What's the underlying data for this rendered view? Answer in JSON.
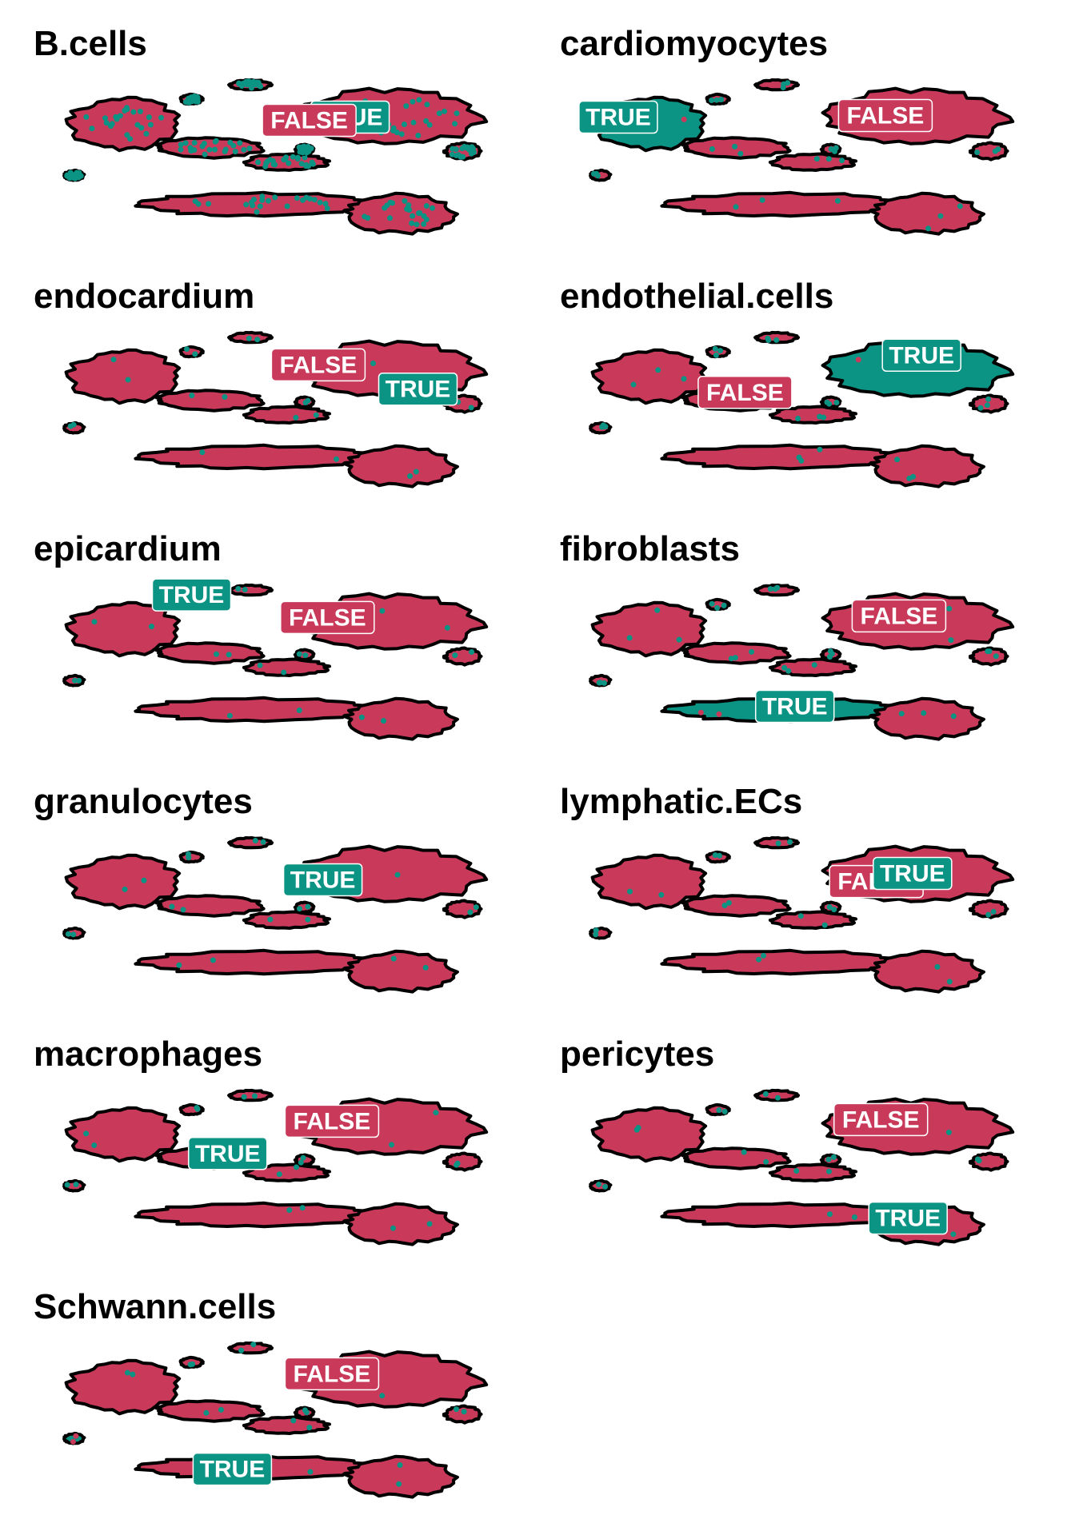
{
  "chart_data": {
    "type": "scatter",
    "description_layout": "faceted embedding plots, 2 columns",
    "colors": {
      "TRUE": "#0B9484",
      "FALSE": "#C8395A",
      "outline": "#000000"
    },
    "facets": [
      {
        "title": "B.cells",
        "true_share": "high",
        "labels": [
          {
            "text": "TRUE",
            "x": 0.66,
            "y": 0.76,
            "fill": "#0B9484"
          },
          {
            "text": "FALSE",
            "x": 0.57,
            "y": 0.74,
            "fill": "#C8395A"
          }
        ]
      },
      {
        "title": "cardiomyocytes",
        "true_share": "cluster",
        "labels": [
          {
            "text": "TRUE",
            "x": 0.09,
            "y": 0.76,
            "fill": "#0B9484"
          },
          {
            "text": "FALSE",
            "x": 0.68,
            "y": 0.77,
            "fill": "#C8395A"
          }
        ]
      },
      {
        "title": "endocardium",
        "true_share": "rare",
        "labels": [
          {
            "text": "FALSE",
            "x": 0.59,
            "y": 0.79,
            "fill": "#C8395A"
          },
          {
            "text": "TRUE",
            "x": 0.81,
            "y": 0.64,
            "fill": "#0B9484"
          }
        ]
      },
      {
        "title": "endothelial.cells",
        "true_share": "cluster",
        "labels": [
          {
            "text": "TRUE",
            "x": 0.76,
            "y": 0.85,
            "fill": "#0B9484"
          },
          {
            "text": "FALSE",
            "x": 0.37,
            "y": 0.62,
            "fill": "#C8395A"
          }
        ]
      },
      {
        "title": "epicardium",
        "true_share": "rare",
        "labels": [
          {
            "text": "TRUE",
            "x": 0.31,
            "y": 0.93,
            "fill": "#0B9484"
          },
          {
            "text": "FALSE",
            "x": 0.61,
            "y": 0.79,
            "fill": "#C8395A"
          }
        ]
      },
      {
        "title": "fibroblasts",
        "true_share": "cluster",
        "labels": [
          {
            "text": "FALSE",
            "x": 0.71,
            "y": 0.8,
            "fill": "#C8395A"
          },
          {
            "text": "TRUE",
            "x": 0.48,
            "y": 0.24,
            "fill": "#0B9484"
          }
        ]
      },
      {
        "title": "granulocytes",
        "true_share": "rare",
        "labels": [
          {
            "text": "TRUE",
            "x": 0.6,
            "y": 0.73,
            "fill": "#0B9484"
          }
        ]
      },
      {
        "title": "lymphatic.ECs",
        "true_share": "rare",
        "labels": [
          {
            "text": "FALSE",
            "x": 0.66,
            "y": 0.72,
            "fill": "#C8395A"
          },
          {
            "text": "TRUE",
            "x": 0.74,
            "y": 0.77,
            "fill": "#0B9484"
          }
        ]
      },
      {
        "title": "macrophages",
        "true_share": "rare",
        "labels": [
          {
            "text": "FALSE",
            "x": 0.62,
            "y": 0.8,
            "fill": "#C8395A"
          },
          {
            "text": "TRUE",
            "x": 0.39,
            "y": 0.6,
            "fill": "#0B9484"
          }
        ]
      },
      {
        "title": "pericytes",
        "true_share": "rare",
        "labels": [
          {
            "text": "FALSE",
            "x": 0.67,
            "y": 0.81,
            "fill": "#C8395A"
          },
          {
            "text": "TRUE",
            "x": 0.73,
            "y": 0.2,
            "fill": "#0B9484"
          }
        ]
      },
      {
        "title": "Schwann.cells",
        "true_share": "rare",
        "labels": [
          {
            "text": "FALSE",
            "x": 0.62,
            "y": 0.8,
            "fill": "#C8395A"
          },
          {
            "text": "TRUE",
            "x": 0.4,
            "y": 0.21,
            "fill": "#0B9484"
          }
        ]
      }
    ]
  }
}
